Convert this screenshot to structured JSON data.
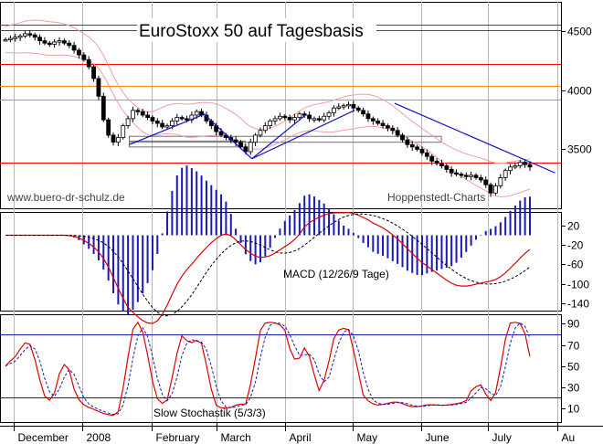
{
  "chart_data": [
    {
      "type": "candlestick",
      "panel": "price",
      "title": "EuroStoxx 50 auf Tagesbasis",
      "watermark_left": "www.buero-dr-schulz.de",
      "watermark_right": "Hoppenstedt-Charts",
      "ylim": [
        3000,
        4750
      ],
      "yticks": [
        "3500",
        "4000",
        "4500"
      ],
      "ytick_values": [
        3500,
        4000,
        4500
      ],
      "horizontal_lines": [
        {
          "value": 4560,
          "color": "#ff0000"
        },
        {
          "value": 4510,
          "color": "#ff0000"
        },
        {
          "value": 4220,
          "color": "#ff0000"
        },
        {
          "value": 4040,
          "color": "#ff8c00"
        },
        {
          "value": 3920,
          "color": "#ff8c00"
        },
        {
          "value": 3390,
          "color": "#ff0000"
        }
      ],
      "closes": [
        4430,
        4440,
        4450,
        4460,
        4480,
        4470,
        4450,
        4420,
        4400,
        4390,
        4410,
        4420,
        4400,
        4380,
        4340,
        4300,
        4260,
        4200,
        4100,
        3950,
        3750,
        3620,
        3560,
        3600,
        3700,
        3760,
        3830,
        3820,
        3790,
        3770,
        3740,
        3720,
        3690,
        3700,
        3740,
        3770,
        3760,
        3750,
        3790,
        3820,
        3790,
        3740,
        3700,
        3650,
        3620,
        3600,
        3580,
        3560,
        3520,
        3480,
        3560,
        3620,
        3660,
        3700,
        3740,
        3760,
        3780,
        3770,
        3750,
        3770,
        3800,
        3790,
        3760,
        3760,
        3750,
        3780,
        3810,
        3850,
        3860,
        3870,
        3880,
        3850,
        3830,
        3800,
        3760,
        3740,
        3720,
        3700,
        3680,
        3660,
        3620,
        3580,
        3540,
        3520,
        3500,
        3470,
        3440,
        3400,
        3380,
        3360,
        3330,
        3300,
        3290,
        3280,
        3270,
        3280,
        3260,
        3240,
        3200,
        3130,
        3190,
        3260,
        3320,
        3350,
        3360,
        3390,
        3370,
        3350
      ],
      "trendlines": [
        {
          "from": [
            "2008-01-22",
            3540
          ],
          "to": [
            "2008-02-25",
            3800
          ]
        },
        {
          "from": [
            "2008-02-25",
            3790
          ],
          "to": [
            "2008-03-17",
            3420
          ]
        },
        {
          "from": [
            "2008-03-17",
            3420
          ],
          "to": [
            "2008-04-10",
            3790
          ]
        },
        {
          "from": [
            "2008-03-17",
            3420
          ],
          "to": [
            "2008-05-02",
            3830
          ]
        },
        {
          "from": [
            "2008-05-20",
            3890
          ],
          "to": [
            "2008-07-31",
            3300
          ]
        }
      ],
      "support_boxes": [
        {
          "low": 3520,
          "high": 3570
        },
        {
          "low": 3560,
          "high": 3610
        }
      ]
    },
    {
      "type": "line",
      "panel": "macd",
      "legend": "MACD (12/26/9 Tage)",
      "ylim": [
        -155,
        48
      ],
      "yticks": [
        "20",
        "-20",
        "-60",
        "-100",
        "-140"
      ],
      "ytick_values": [
        20,
        -20,
        -60,
        -100,
        -140
      ]
    },
    {
      "type": "line",
      "panel": "stochastic",
      "legend": "Slow Stochastik (5/3/3)",
      "ylim": [
        -3,
        99
      ],
      "yticks": [
        "90",
        "70",
        "50",
        "30",
        "10"
      ],
      "ytick_values": [
        90,
        70,
        50,
        30,
        10
      ],
      "reference_lines": [
        80,
        20
      ]
    }
  ],
  "x_axis": {
    "month_labels": [
      "December",
      "2008",
      "February",
      "March",
      "April",
      "May",
      "June",
      "July",
      "Au"
    ]
  }
}
